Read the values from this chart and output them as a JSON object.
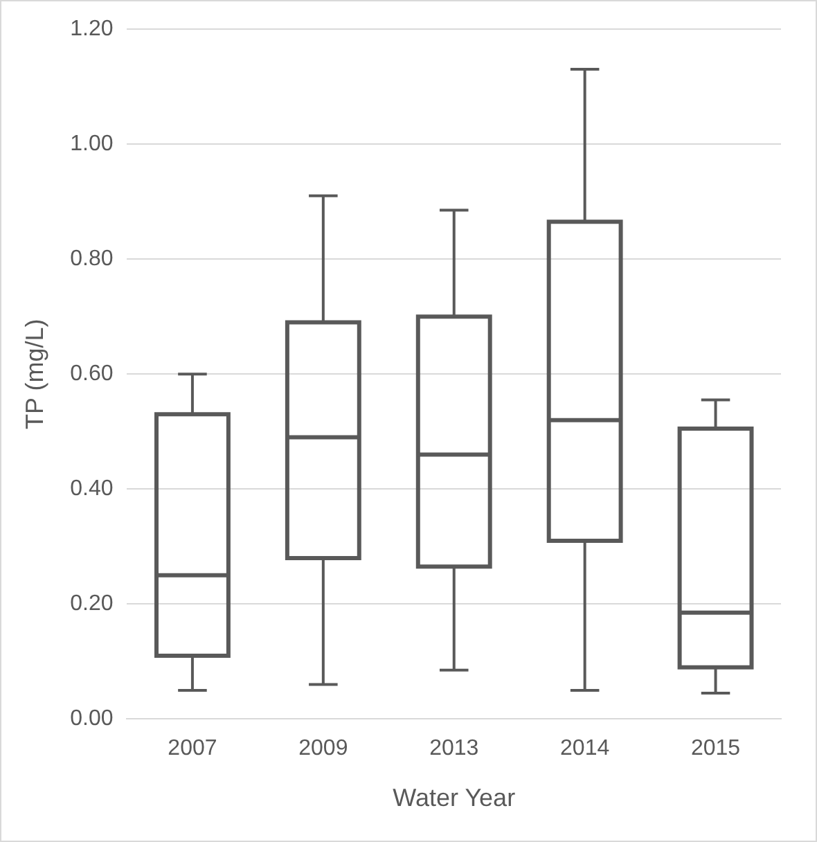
{
  "chart_data": {
    "type": "box",
    "xlabel": "Water Year",
    "ylabel": "TP (mg/L)",
    "categories": [
      "2007",
      "2009",
      "2013",
      "2014",
      "2015"
    ],
    "boxes": [
      {
        "low": 0.05,
        "q1": 0.11,
        "median": 0.25,
        "q3": 0.53,
        "high": 0.6
      },
      {
        "low": 0.06,
        "q1": 0.28,
        "median": 0.49,
        "q3": 0.69,
        "high": 0.91
      },
      {
        "low": 0.085,
        "q1": 0.265,
        "median": 0.46,
        "q3": 0.7,
        "high": 0.885
      },
      {
        "low": 0.05,
        "q1": 0.31,
        "median": 0.52,
        "q3": 0.865,
        "high": 1.13
      },
      {
        "low": 0.045,
        "q1": 0.09,
        "median": 0.185,
        "q3": 0.505,
        "high": 0.555
      }
    ],
    "color": "#595959",
    "ylim": [
      0,
      1.2
    ],
    "yticks": [
      {
        "value": 0,
        "label": "0.00"
      },
      {
        "value": 0.2,
        "label": "0.20"
      },
      {
        "value": 0.4,
        "label": "0.40"
      },
      {
        "value": 0.6,
        "label": "0.60"
      },
      {
        "value": 0.8,
        "label": "0.80"
      },
      {
        "value": 1,
        "label": "1.00"
      },
      {
        "value": 1.2,
        "label": "1.20"
      }
    ],
    "grid": "y",
    "legend": false
  }
}
